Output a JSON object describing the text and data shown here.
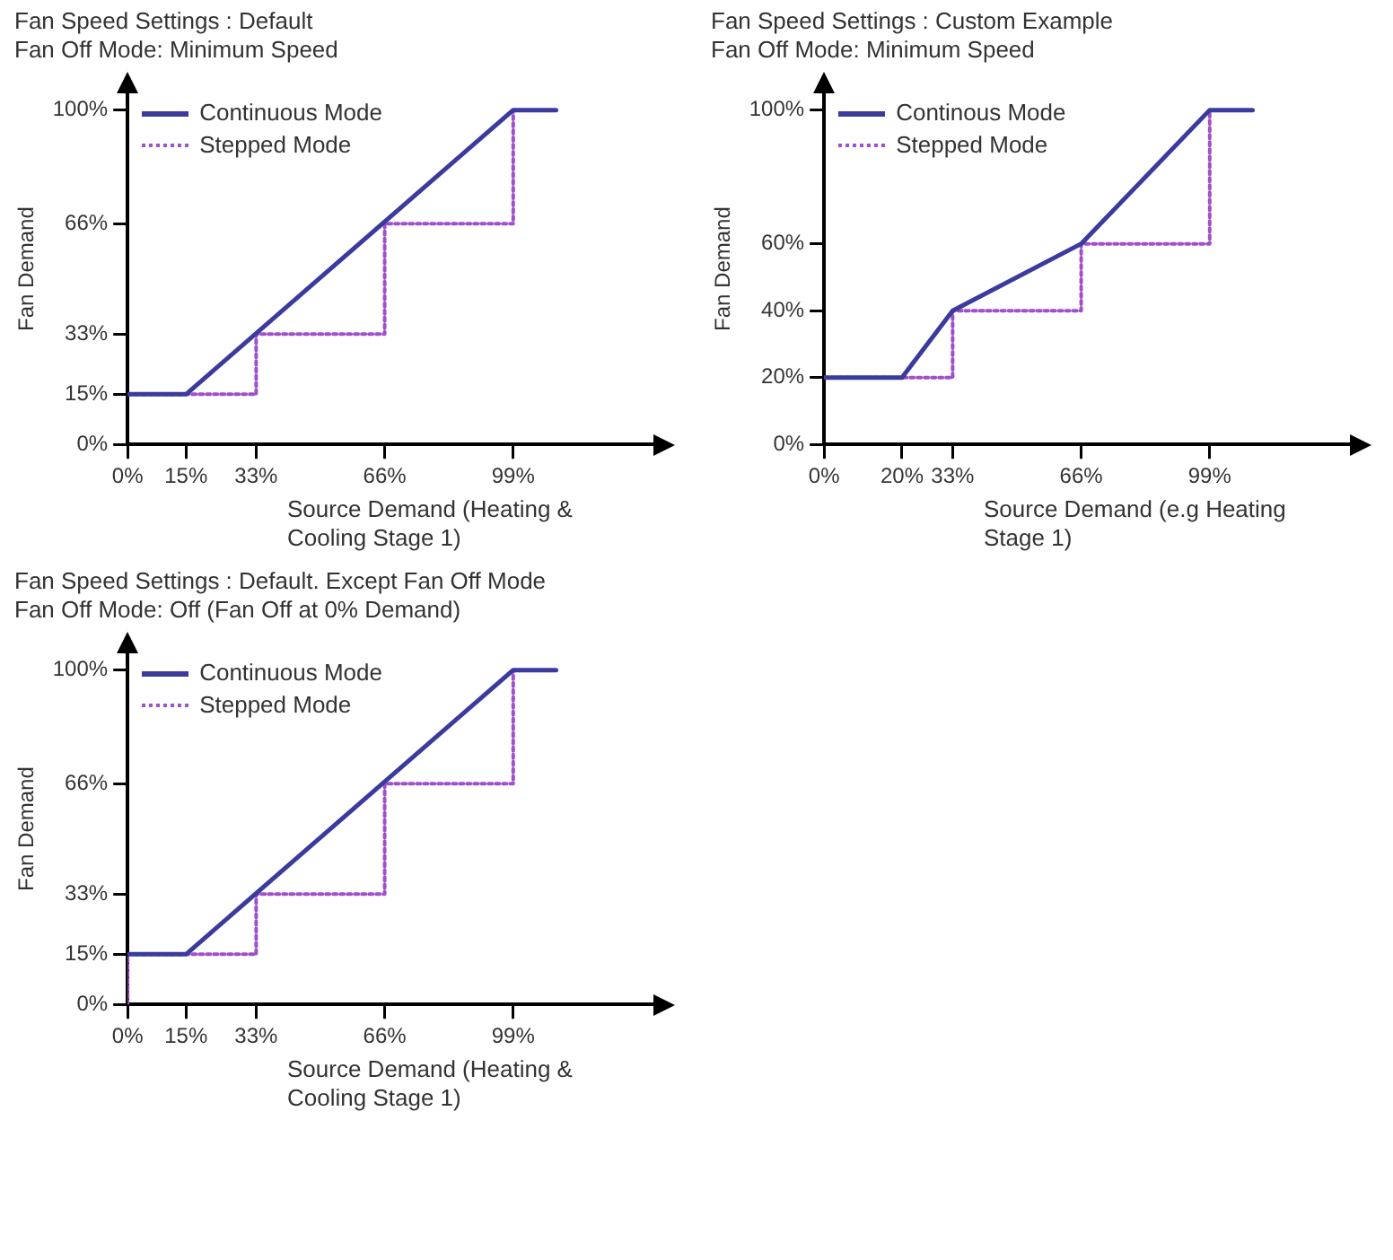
{
  "chart_data": [
    {
      "type": "line",
      "title": "Fan Speed Settings : Default",
      "subtitle": "Fan Off Mode: Minimum Speed",
      "xlabel": "Source Demand (Heating & Cooling Stage 1)",
      "ylabel": "Fan Demand",
      "xlim": [
        0,
        135
      ],
      "ylim": [
        0,
        105
      ],
      "xticks": [
        {
          "value": 0,
          "label": "0%"
        },
        {
          "value": 15,
          "label": "15%"
        },
        {
          "value": 33,
          "label": "33%"
        },
        {
          "value": 66,
          "label": "66%"
        },
        {
          "value": 99,
          "label": "99%"
        }
      ],
      "yticks": [
        {
          "value": 0,
          "label": "0%"
        },
        {
          "value": 15,
          "label": "15%"
        },
        {
          "value": 33,
          "label": "33%"
        },
        {
          "value": 66,
          "label": "66%"
        },
        {
          "value": 100,
          "label": "100%"
        }
      ],
      "grid": false,
      "legend": "top left",
      "marker": "none",
      "series": [
        {
          "name": "Continuous Mode",
          "type": "line",
          "color": "#3b3b9e",
          "line_style": "solid",
          "x": [
            0,
            15,
            99,
            110
          ],
          "values": [
            15,
            15,
            100,
            100
          ]
        },
        {
          "name": "Stepped Mode",
          "type": "step",
          "color": "#a050c8",
          "line_style": "dotted",
          "x": [
            0,
            33,
            66,
            99
          ],
          "values": [
            15,
            33,
            66,
            100
          ]
        }
      ]
    },
    {
      "type": "line",
      "title": "Fan Speed Settings : Custom Example",
      "subtitle": "Fan Off Mode: Minimum Speed",
      "xlabel": "Source Demand (e.g Heating Stage 1)",
      "ylabel": "Fan Demand",
      "xlim": [
        0,
        135
      ],
      "ylim": [
        0,
        105
      ],
      "xticks": [
        {
          "value": 0,
          "label": "0%"
        },
        {
          "value": 20,
          "label": "20%"
        },
        {
          "value": 33,
          "label": "33%"
        },
        {
          "value": 66,
          "label": "66%"
        },
        {
          "value": 99,
          "label": "99%"
        }
      ],
      "yticks": [
        {
          "value": 0,
          "label": "0%"
        },
        {
          "value": 20,
          "label": "20%"
        },
        {
          "value": 40,
          "label": "40%"
        },
        {
          "value": 60,
          "label": "60%"
        },
        {
          "value": 100,
          "label": "100%"
        }
      ],
      "grid": false,
      "legend": "top left",
      "marker": "none",
      "series": [
        {
          "name": "Continous Mode",
          "type": "line",
          "color": "#3b3b9e",
          "line_style": "solid",
          "x": [
            0,
            20,
            33,
            66,
            99,
            110
          ],
          "values": [
            20,
            20,
            40,
            60,
            100,
            100
          ]
        },
        {
          "name": "Stepped Mode",
          "type": "step",
          "color": "#a050c8",
          "line_style": "dotted",
          "x": [
            0,
            33,
            66,
            99
          ],
          "values": [
            20,
            40,
            60,
            100
          ]
        }
      ]
    },
    {
      "type": "line",
      "title": "Fan Speed Settings : Default. Except Fan Off Mode",
      "subtitle": "Fan Off Mode: Off (Fan Off at 0% Demand)",
      "xlabel": "Source Demand (Heating & Cooling Stage 1)",
      "ylabel": "Fan Demand",
      "xlim": [
        0,
        135
      ],
      "ylim": [
        0,
        105
      ],
      "xticks": [
        {
          "value": 0,
          "label": "0%"
        },
        {
          "value": 15,
          "label": "15%"
        },
        {
          "value": 33,
          "label": "33%"
        },
        {
          "value": 66,
          "label": "66%"
        },
        {
          "value": 99,
          "label": "99%"
        }
      ],
      "yticks": [
        {
          "value": 0,
          "label": "0%"
        },
        {
          "value": 15,
          "label": "15%"
        },
        {
          "value": 33,
          "label": "33%"
        },
        {
          "value": 66,
          "label": "66%"
        },
        {
          "value": 100,
          "label": "100%"
        }
      ],
      "grid": false,
      "legend": "top left",
      "marker": "none",
      "series": [
        {
          "name": "Continuous Mode",
          "type": "line",
          "color": "#3b3b9e",
          "line_style": "solid",
          "x": [
            0,
            15,
            99,
            110
          ],
          "values": [
            15,
            15,
            100,
            100
          ]
        },
        {
          "name": "Stepped Mode",
          "type": "step",
          "color": "#a050c8",
          "line_style": "dotted",
          "x": [
            0,
            0,
            33,
            66,
            99
          ],
          "values": [
            0,
            15,
            33,
            66,
            100
          ]
        }
      ]
    }
  ]
}
